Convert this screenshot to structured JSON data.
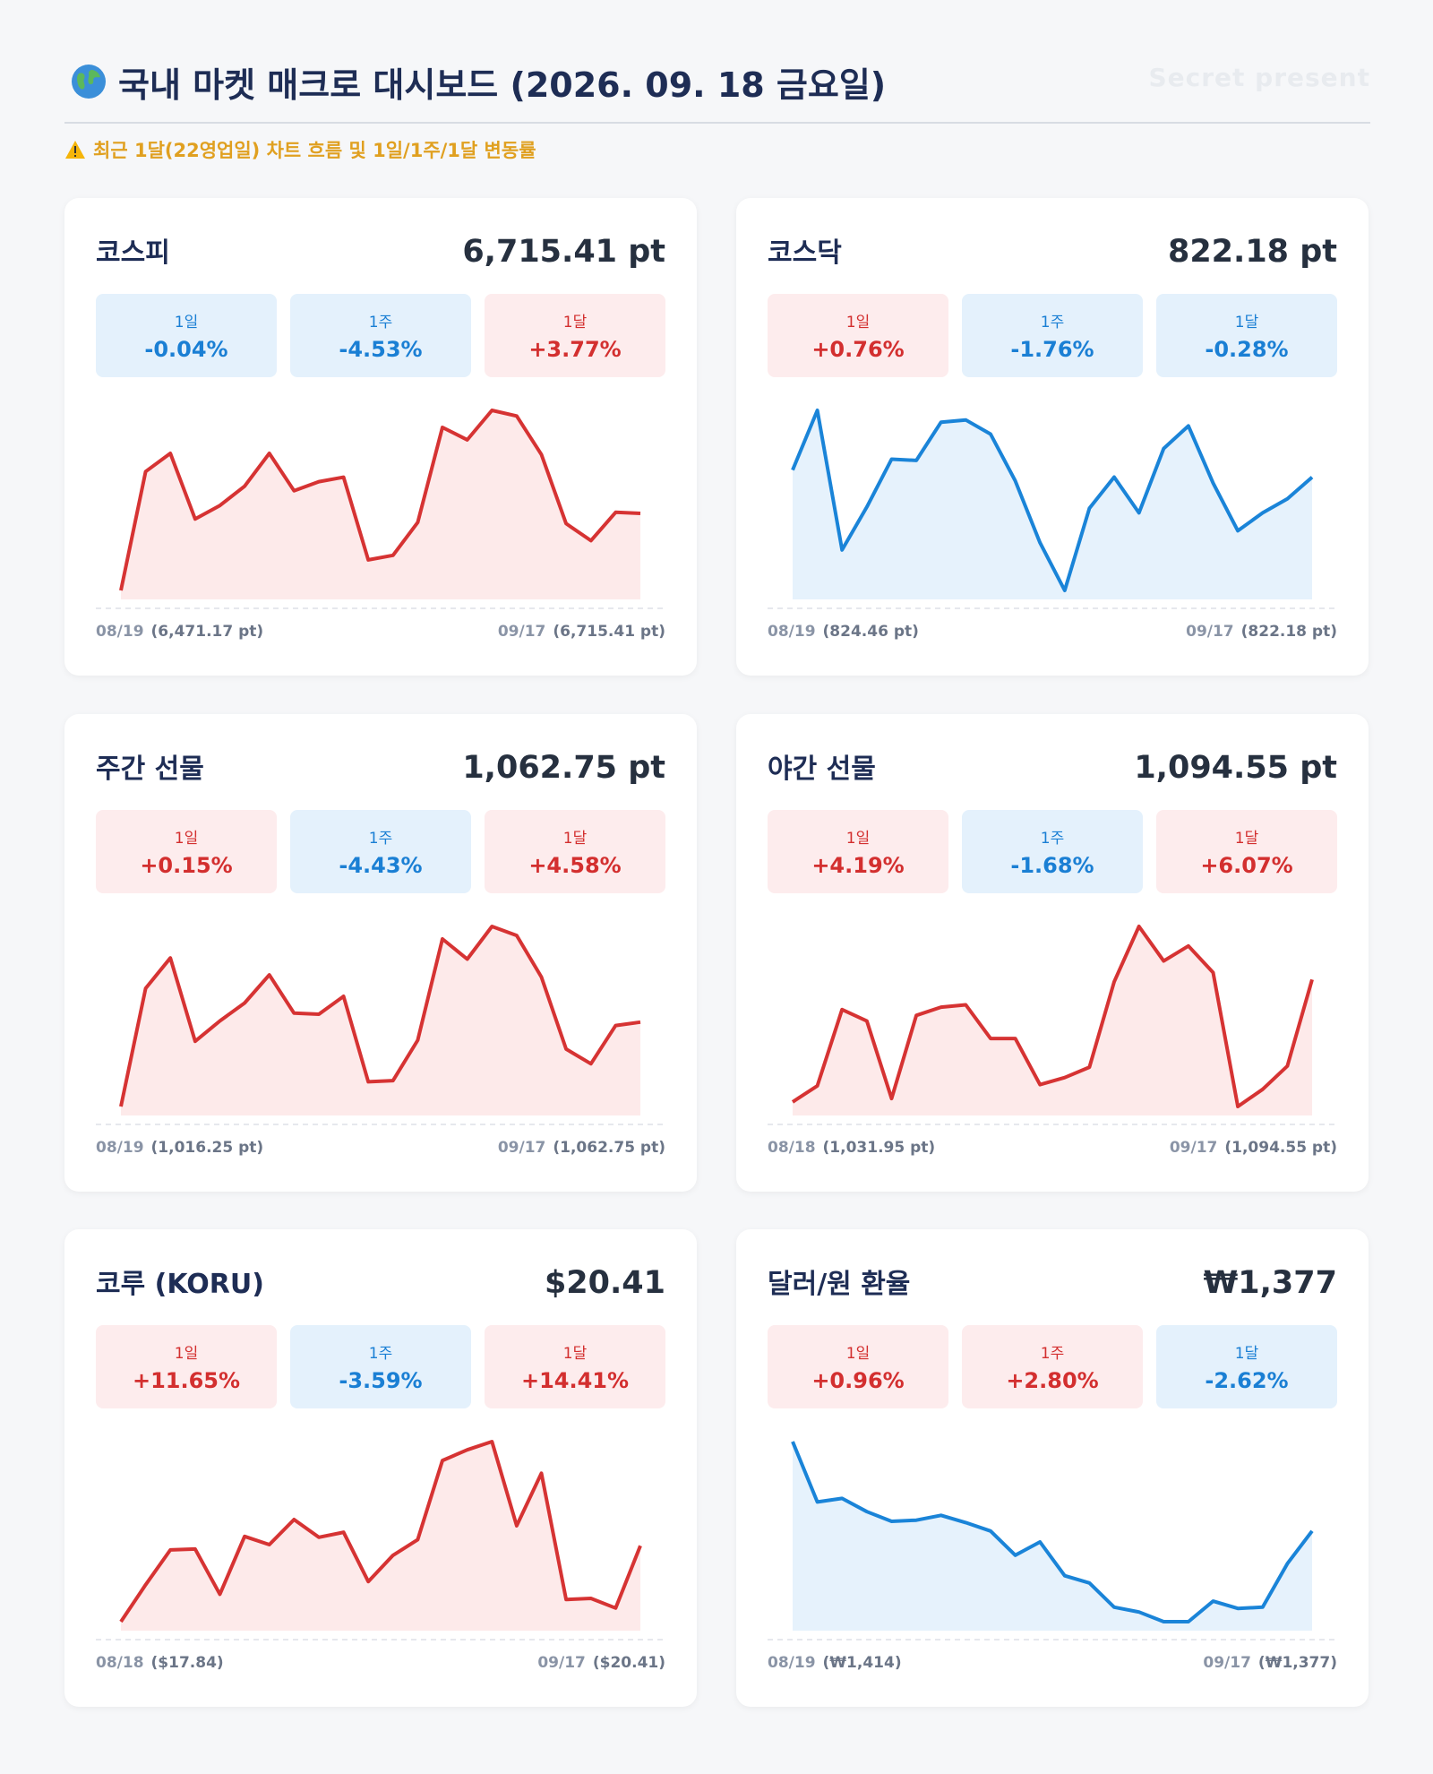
{
  "header": {
    "title": "국내 마켓 매크로 대시보드 (2026. 09. 18 금요일)",
    "watermark": "Secret present",
    "notice": "최근 1달(22영업일) 차트 흐름 및 1일/1주/1달 변동률"
  },
  "cards": [
    {
      "title": "코스피",
      "value": "6,715.41 pt",
      "changes": [
        {
          "label": "1일",
          "value": "-0.04%"
        },
        {
          "label": "1주",
          "value": "-4.53%"
        },
        {
          "label": "1달",
          "value": "+3.77%"
        }
      ],
      "chart": {
        "type": "line",
        "color": "#d63333",
        "fill": "#fdeaea",
        "x": [
          "08/19",
          null,
          null,
          null,
          null,
          null,
          null,
          null,
          null,
          null,
          null,
          null,
          null,
          null,
          null,
          null,
          null,
          null,
          null,
          null,
          null,
          "09/17"
        ],
        "values": [
          6471.17,
          6848.3,
          6905.8,
          6697.5,
          6740.6,
          6801.6,
          6905.8,
          6787.3,
          6816.0,
          6830.4,
          6568.2,
          6582.5,
          6686.7,
          6988.4,
          6948.9,
          7042.3,
          7024.4,
          6902.2,
          6683.1,
          6629.2,
          6719.0,
          6715.41
        ],
        "value_labels": [
          "(6,471.17 pt)",
          null,
          null,
          null,
          null,
          null,
          null,
          null,
          null,
          null,
          null,
          null,
          null,
          null,
          null,
          null,
          null,
          null,
          null,
          null,
          null,
          "(6,715.41 pt)"
        ]
      }
    },
    {
      "title": "코스닥",
      "value": "822.18 pt",
      "changes": [
        {
          "label": "1일",
          "value": "+0.76%"
        },
        {
          "label": "1주",
          "value": "-1.76%"
        },
        {
          "label": "1달",
          "value": "-0.28%"
        }
      ],
      "chart": {
        "type": "line",
        "color": "#1a84d8",
        "fill": "#e6f2fc",
        "x": [
          "08/19",
          null,
          null,
          null,
          null,
          null,
          null,
          null,
          null,
          null,
          null,
          null,
          null,
          null,
          null,
          null,
          null,
          null,
          null,
          null,
          null,
          "09/17"
        ],
        "values": [
          824.46,
          843.46,
          799.0,
          812.7,
          827.9,
          827.5,
          839.7,
          840.4,
          835.9,
          821.0,
          801.3,
          786.1,
          812.3,
          822.2,
          810.8,
          831.3,
          838.5,
          820.3,
          805.1,
          810.8,
          815.3,
          822.18
        ],
        "value_labels": [
          "(824.46 pt)",
          null,
          null,
          null,
          null,
          null,
          null,
          null,
          null,
          null,
          null,
          null,
          null,
          null,
          null,
          null,
          null,
          null,
          null,
          null,
          null,
          "(822.18 pt)"
        ]
      }
    },
    {
      "title": "주간 선물",
      "value": "1,062.75 pt",
      "changes": [
        {
          "label": "1일",
          "value": "+0.15%"
        },
        {
          "label": "1주",
          "value": "-4.43%"
        },
        {
          "label": "1달",
          "value": "+4.58%"
        }
      ],
      "chart": {
        "type": "line",
        "color": "#d63333",
        "fill": "#fdeaea",
        "x": [
          "08/19",
          null,
          null,
          null,
          null,
          null,
          null,
          null,
          null,
          null,
          null,
          null,
          null,
          null,
          null,
          null,
          null,
          null,
          null,
          null,
          null,
          "09/17"
        ],
        "values": [
          1016.25,
          1081.4,
          1098.1,
          1052.2,
          1063.4,
          1073.3,
          1088.8,
          1067.7,
          1067.1,
          1077.0,
          1029.9,
          1030.5,
          1052.8,
          1108.6,
          1097.5,
          1115.5,
          1110.5,
          1087.6,
          1047.9,
          1039.8,
          1060.9,
          1062.75
        ],
        "value_labels": [
          "(1,016.25 pt)",
          null,
          null,
          null,
          null,
          null,
          null,
          null,
          null,
          null,
          null,
          null,
          null,
          null,
          null,
          null,
          null,
          null,
          null,
          null,
          null,
          "(1,062.75 pt)"
        ]
      }
    },
    {
      "title": "야간 선물",
      "value": "1,094.55 pt",
      "changes": [
        {
          "label": "1일",
          "value": "+4.19%"
        },
        {
          "label": "1주",
          "value": "-1.68%"
        },
        {
          "label": "1달",
          "value": "+6.07%"
        }
      ],
      "chart": {
        "type": "line",
        "color": "#d63333",
        "fill": "#fdeaea",
        "x": [
          "08/18",
          null,
          null,
          null,
          null,
          null,
          null,
          null,
          null,
          null,
          null,
          null,
          null,
          null,
          null,
          null,
          null,
          null,
          null,
          null,
          null,
          "09/17"
        ],
        "values": [
          1031.95,
          1040.2,
          1079.2,
          1073.3,
          1033.7,
          1076.2,
          1080.4,
          1081.6,
          1064.4,
          1064.4,
          1040.8,
          1044.4,
          1049.7,
          1093.4,
          1121.7,
          1104.0,
          1111.7,
          1098.1,
          1029.6,
          1038.4,
          1050.3,
          1094.55
        ],
        "value_labels": [
          "(1,031.95 pt)",
          null,
          null,
          null,
          null,
          null,
          null,
          null,
          null,
          null,
          null,
          null,
          null,
          null,
          null,
          null,
          null,
          null,
          null,
          null,
          null,
          "(1,094.55 pt)"
        ]
      }
    },
    {
      "title": "코루 (KORU)",
      "value": "$20.41",
      "changes": [
        {
          "label": "1일",
          "value": "+11.65%"
        },
        {
          "label": "1주",
          "value": "-3.59%"
        },
        {
          "label": "1달",
          "value": "+14.41%"
        }
      ],
      "chart": {
        "type": "line",
        "color": "#d63333",
        "fill": "#fdeaea",
        "x": [
          "08/18",
          null,
          null,
          null,
          null,
          null,
          null,
          null,
          null,
          null,
          null,
          null,
          null,
          null,
          null,
          null,
          null,
          null,
          null,
          null,
          null,
          "09/17"
        ],
        "values": [
          17.84,
          19.09,
          20.27,
          20.3,
          18.77,
          20.73,
          20.45,
          21.3,
          20.7,
          20.87,
          19.2,
          20.09,
          20.62,
          23.3,
          23.66,
          23.94,
          21.09,
          22.87,
          18.59,
          18.63,
          18.3,
          20.41
        ],
        "value_labels": [
          "($17.84)",
          null,
          null,
          null,
          null,
          null,
          null,
          null,
          null,
          null,
          null,
          null,
          null,
          null,
          null,
          null,
          null,
          null,
          null,
          null,
          null,
          "($20.41)"
        ]
      }
    },
    {
      "title": "달러/원 환율",
      "value": "₩1,377",
      "changes": [
        {
          "label": "1일",
          "value": "+0.96%"
        },
        {
          "label": "1주",
          "value": "+2.80%"
        },
        {
          "label": "1달",
          "value": "-2.62%"
        }
      ],
      "chart": {
        "type": "line",
        "color": "#1a84d8",
        "fill": "#e6f2fc",
        "x": [
          "08/19",
          null,
          null,
          null,
          null,
          null,
          null,
          null,
          null,
          null,
          null,
          null,
          null,
          null,
          null,
          null,
          null,
          null,
          null,
          null,
          null,
          "09/17"
        ],
        "values": [
          1414,
          1389,
          1390.5,
          1385,
          1381,
          1381.5,
          1383.5,
          1380.5,
          1377,
          1367,
          1372.5,
          1358.5,
          1355.5,
          1345.5,
          1343.5,
          1339.5,
          1339.5,
          1348,
          1345,
          1345.5,
          1363.5,
          1377
        ],
        "value_labels": [
          "(₩1,414)",
          null,
          null,
          null,
          null,
          null,
          null,
          null,
          null,
          null,
          null,
          null,
          null,
          null,
          null,
          null,
          null,
          null,
          null,
          null,
          null,
          "(₩1,377)"
        ]
      }
    }
  ]
}
